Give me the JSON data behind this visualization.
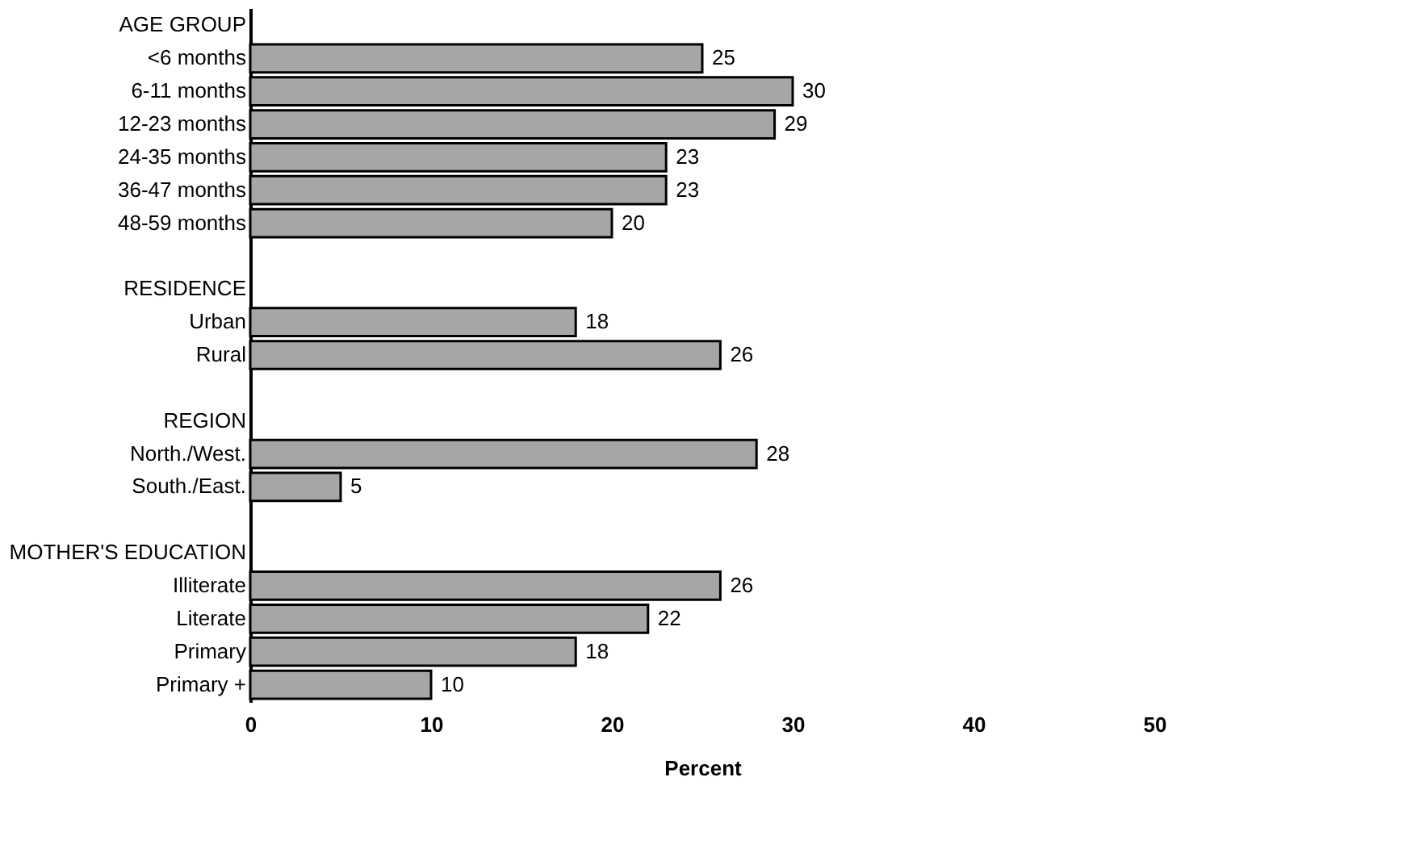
{
  "chart_data": {
    "type": "bar",
    "orientation": "horizontal",
    "xlabel": "Percent",
    "categories": [
      "AGE GROUP",
      "<6 months",
      "6-11 months",
      "12-23 months",
      "24-35 months",
      "36-47 months",
      "48-59 months",
      null,
      "RESIDENCE",
      "Urban",
      "Rural",
      null,
      "REGION",
      "North./West.",
      "South./East.",
      null,
      "MOTHER'S EDUCATION",
      "Illiterate",
      "Literate",
      "Primary",
      "Primary +"
    ],
    "values": [
      null,
      25,
      30,
      29,
      23,
      23,
      20,
      null,
      null,
      18,
      26,
      null,
      null,
      28,
      5,
      null,
      null,
      26,
      22,
      18,
      10
    ],
    "color": "#a6a6a6",
    "xlim": [
      0,
      50
    ],
    "xticks": [
      0,
      10,
      20,
      30,
      40,
      50
    ],
    "data_labels": true,
    "grid": false
  }
}
